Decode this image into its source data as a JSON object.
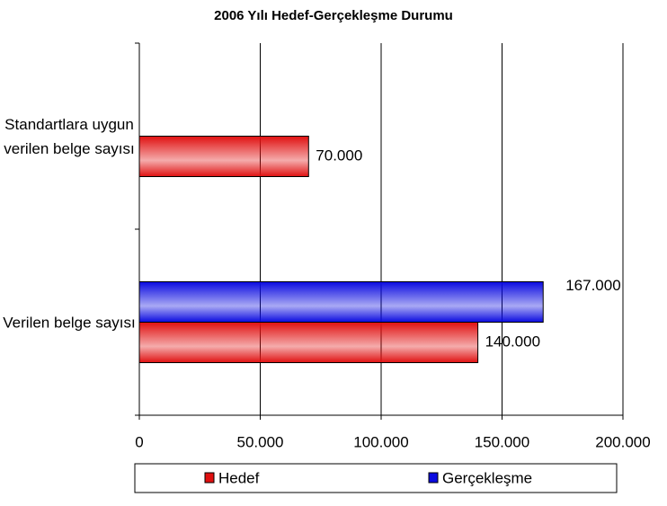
{
  "chart_data": {
    "type": "bar",
    "orientation": "horizontal",
    "title": "2006 Yılı Hedef-Gerçekleşme Durumu",
    "categories": [
      "Standartlara uygun verilen belge sayısı",
      "Verilen belge sayısı"
    ],
    "series": [
      {
        "name": "Hedef",
        "color": "#e01010",
        "values": [
          70000,
          140000
        ],
        "value_labels": [
          "70.000",
          "140.000"
        ]
      },
      {
        "name": "Gerçekleşme",
        "color": "#0a0ae0",
        "values": [
          null,
          167000
        ],
        "value_labels": [
          null,
          "167.000"
        ]
      }
    ],
    "xlim": [
      0,
      200000
    ],
    "xticks": [
      0,
      {
        "value": 50000,
        "label": "50.000"
      },
      {
        "value": 100000,
        "label": "100.000"
      },
      {
        "value": 150000,
        "label": "150.000"
      },
      {
        "value": 200000,
        "label": "200.000"
      }
    ],
    "grid": true,
    "legend": "bottom"
  }
}
